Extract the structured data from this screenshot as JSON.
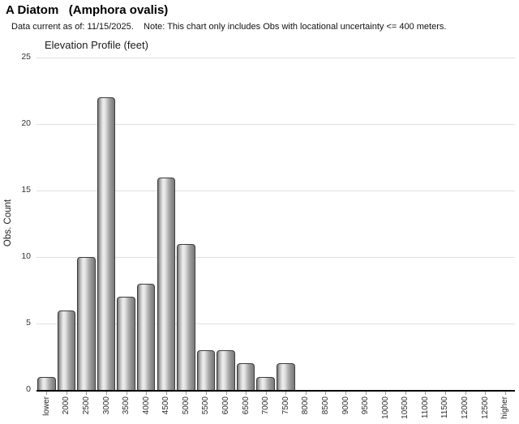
{
  "page": {
    "title": "A Diatom   (Amphora ovalis)",
    "subtitle": "Data current as of: 11/15/2025.    Note: This chart only includes Obs with locational uncertainty <= 400 meters."
  },
  "chart_data": {
    "type": "bar",
    "title": "Elevation Profile (feet)",
    "xlabel": "",
    "ylabel": "Obs. Count",
    "categories": [
      "lower",
      "2000",
      "2500",
      "3000",
      "3500",
      "4000",
      "4500",
      "5000",
      "5500",
      "6000",
      "6500",
      "7000",
      "7500",
      "8000",
      "8500",
      "9000",
      "9500",
      "10000",
      "10500",
      "11000",
      "11500",
      "12000",
      "12500",
      "higher"
    ],
    "values": [
      1,
      6,
      10,
      22,
      7,
      8,
      16,
      11,
      3,
      3,
      2,
      1,
      2,
      0,
      0,
      0,
      0,
      0,
      0,
      0,
      0,
      0,
      0,
      0
    ],
    "ylim": [
      0,
      25
    ],
    "yticks": [
      0,
      5,
      10,
      15,
      20,
      25
    ],
    "grid": true,
    "legend": "none",
    "colors": {
      "bar_fill_light": "#eeeeee",
      "bar_fill_dark": "#6e6e6e",
      "bar_border": "#3d3d3d",
      "gridline": "#e0e0e0",
      "axis_line": "#000000",
      "tick_mark": "#999999",
      "tick_label_text": "#2b2b2b",
      "background": "#ffffff"
    }
  }
}
